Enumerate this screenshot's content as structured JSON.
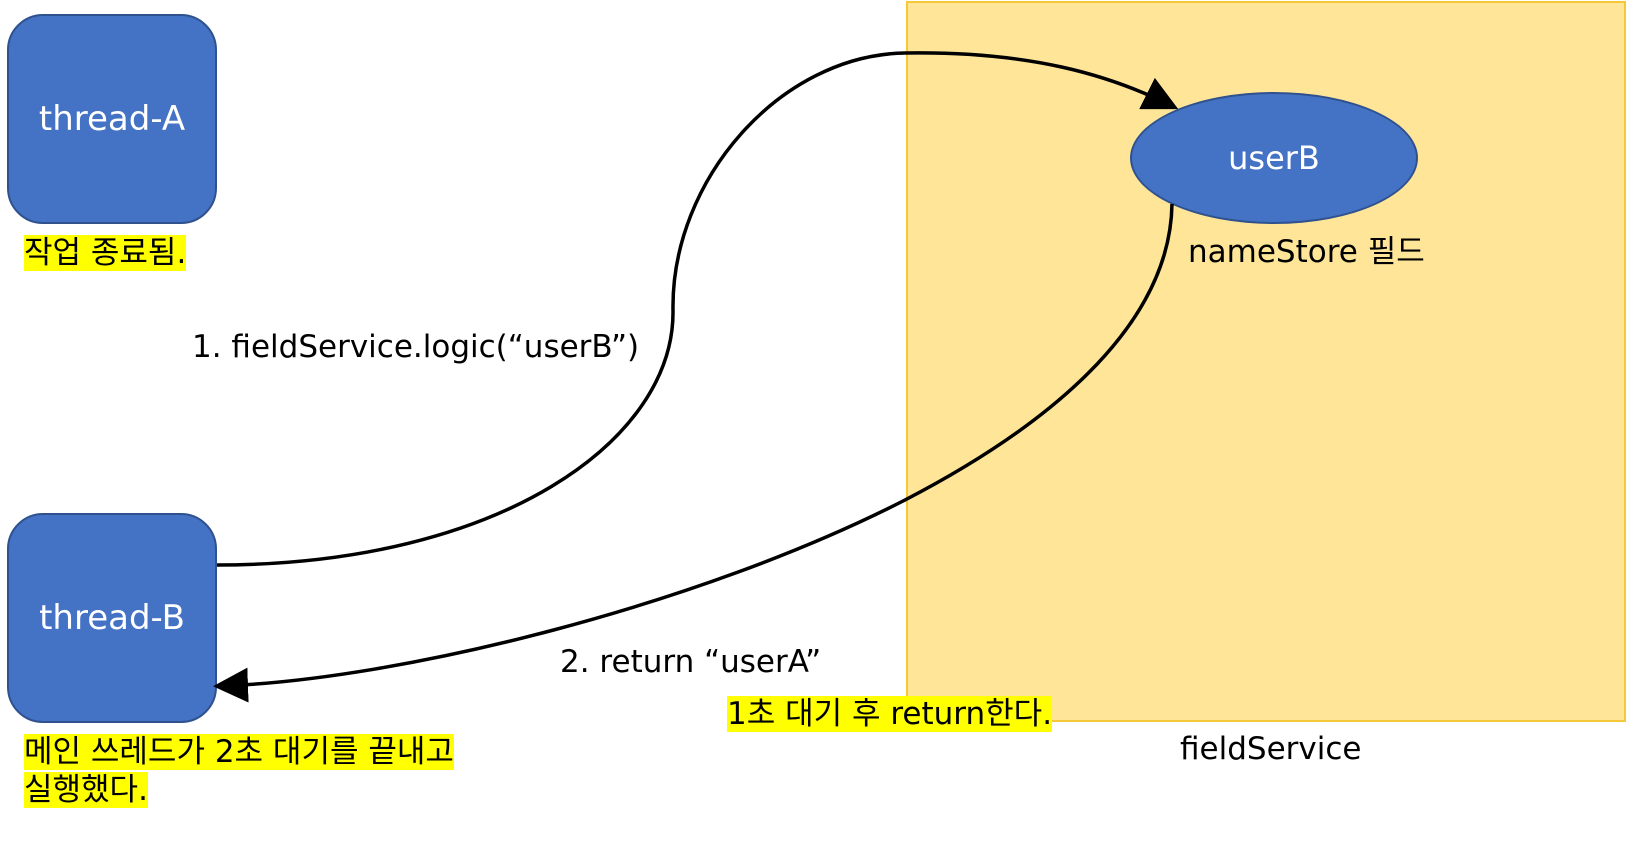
{
  "threads": {
    "a": {
      "label": "thread-A",
      "note": "작업 종료됨."
    },
    "b": {
      "label": "thread-B",
      "note_line1": "메인 쓰레드가 2초 대기를 끝내고",
      "note_line2": "실행했다."
    }
  },
  "field_service": {
    "label": "fieldService",
    "store_value": "userB",
    "store_label": "nameStore 필드"
  },
  "arrows": {
    "call_label": "1. fieldService.logic(“userB”)",
    "return_label": "2. return  “userA”",
    "return_note": "1초 대기 후 return한다."
  },
  "colors": {
    "thread_fill": "#4472c4",
    "service_fill": "#fee598",
    "highlight": "#ffff00"
  }
}
